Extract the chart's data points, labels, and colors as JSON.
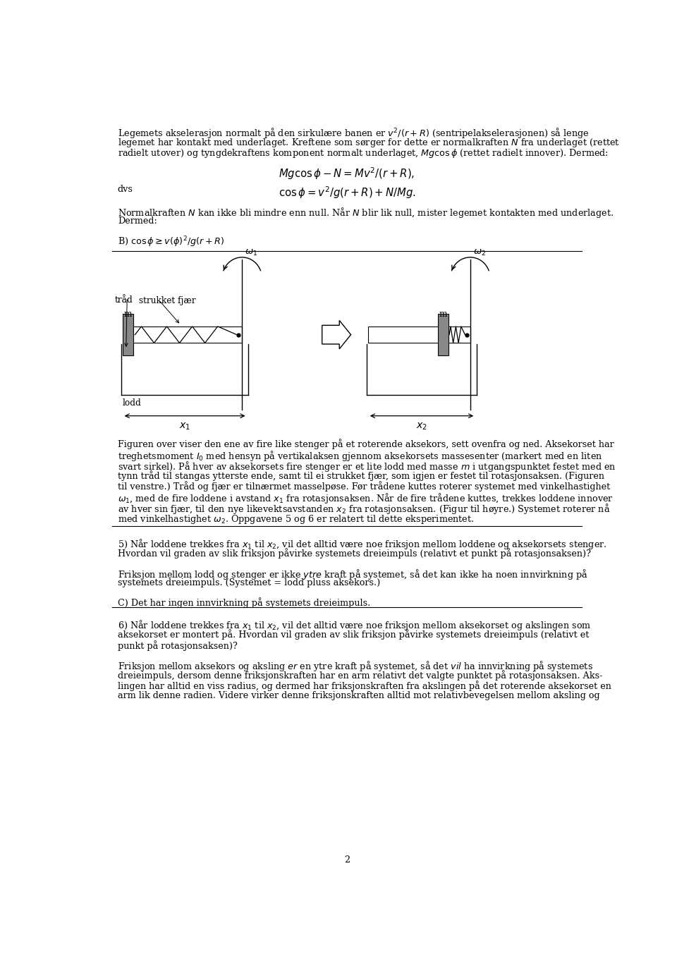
{
  "bg_color": "#ffffff",
  "text_color": "#000000",
  "page_width": 9.6,
  "page_height": 13.84,
  "lm": 0.063,
  "rm": 0.937,
  "fs": 9.2,
  "lh": 0.0142,
  "lines_p1": [
    "Legemets akselerasjon normalt på den sirkulære banen er $v^2/(r+R)$ (sentripelakselerasjonen) så lenge",
    "legemet har kontakt med underlaget. Kreftene som sørger for dette er normalkraften $N$ fra underlaget (rettet",
    "radielt utover) og tyngdekraftens komponent normalt underlaget, $Mg\\cos\\phi$ (rettet radielt innover). Dermed:"
  ],
  "eq1": "$Mg\\cos\\phi - N = Mv^2/(r+R),$",
  "dvs": "dvs",
  "eq2": "$\\cos\\phi = v^2/g(r+R) + N/Mg.$",
  "lines_p2": [
    "Normalkraften $N$ kan ikke bli mindre enn null. Når $N$ blir lik null, mister legemet kontakten med underlaget.",
    "Dermed:"
  ],
  "eq3": "B) $\\cos\\phi \\geq v(\\phi)^2/g(r+R)$",
  "cap_lines": [
    "Figuren over viser den ene av fire like stenger på et roterende aksekors, sett ovenfra og ned. Aksekorset har",
    "treghetsmoment $I_0$ med hensyn på vertikalaksen gjennom aksekorsets massesenter (markert med en liten",
    "svart sirkel). På hver av aksekorsets fire stenger er et lite lodd med masse $m$ i utgangspunktet festet med en",
    "tynn tråd til stangas ytterste ende, samt til ei strukket fjær, som igjen er festet til rotasjonsaksen. (Figuren",
    "til venstre.) Tråd og fjær er tilnærmet masselpøse. Før trådene kuttes roterer systemet med vinkelhastighet",
    "$\\omega_1$, med de fire loddene i avstand $x_1$ fra rotasjonsaksen. Når de fire trådene kuttes, trekkes loddene innover",
    "av hver sin fjær, til den nye likevektsavstanden $x_2$ fra rotasjonsaksen. (Figur til høyre.) Systemet roterer nå",
    "med vinkelhastighet $\\omega_2$. Oppgavene 5 og 6 er relatert til dette eksperimentet."
  ],
  "sec5_q": [
    "5) Når loddene trekkes fra $x_1$ til $x_2$, vil det alltid være noe friksjon mellom loddene og aksekorsets stenger.",
    "Hvordan vil graden av slik friksjon påvirke systemets dreieimpuls (relativt et punkt på rotasjonsaksen)?"
  ],
  "sec5_a": [
    "Friksjon mellom lodd og stenger er ikke $\\mathit{ytre}$ kraft på systemet, så det kan ikke ha noen innvirkning på",
    "systemets dreieimpuls. (Systemet = lodd pluss aksekors.)"
  ],
  "sec5_c": "C) Det har ingen innvirkning på systemets dreieimpuls.",
  "sec6_q": [
    "6) Når loddene trekkes fra $x_1$ til $x_2$, vil det alltid være noe friksjon mellom aksekorset og akslingen som",
    "aksekorset er montert på. Hvordan vil graden av slik friksjon påvirke systemets dreieimpuls (relativt et",
    "punkt på rotasjonsaksen)?"
  ],
  "sec6_a": [
    "Friksjon mellom aksekors og aksling $\\mathit{er}$ en ytre kraft på systemet, så det $\\mathit{vil}$ ha innvirkning på systemets",
    "dreieimpuls, dersom denne friksjonskraften har en arm relativt det valgte punktet på rotasjonsaksen. Aks-",
    "lingen har alltid en viss radius, og dermed har friksjonskraften fra akslingen på det roterende aksekorset en",
    "arm lik denne radien. Videre virker denne friksjonskraften alltid mot relativbevegelsen mellom aksling og"
  ],
  "page_number": "2"
}
